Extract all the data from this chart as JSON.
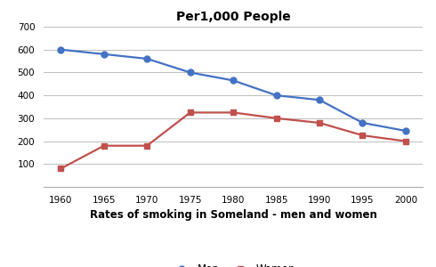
{
  "title": "Per1,000 People",
  "xlabel": "Rates of smoking in Someland - men and women",
  "years": [
    1960,
    1965,
    1970,
    1975,
    1980,
    1985,
    1990,
    1995,
    2000
  ],
  "men": [
    600,
    580,
    560,
    500,
    465,
    400,
    380,
    280,
    245
  ],
  "women": [
    80,
    180,
    180,
    325,
    325,
    300,
    280,
    225,
    200
  ],
  "men_color": "#4472C4",
  "women_color": "#C0504D",
  "ylim": [
    0,
    700
  ],
  "yticks": [
    0,
    100,
    200,
    300,
    400,
    500,
    600,
    700
  ],
  "background_color": "#ffffff",
  "grid_color": "#bfbfbf",
  "title_fontsize": 10,
  "xlabel_fontsize": 8.5,
  "tick_fontsize": 7.5,
  "legend_fontsize": 8.5,
  "linewidth": 1.6,
  "marker_size_men": 5,
  "marker_size_women": 4
}
